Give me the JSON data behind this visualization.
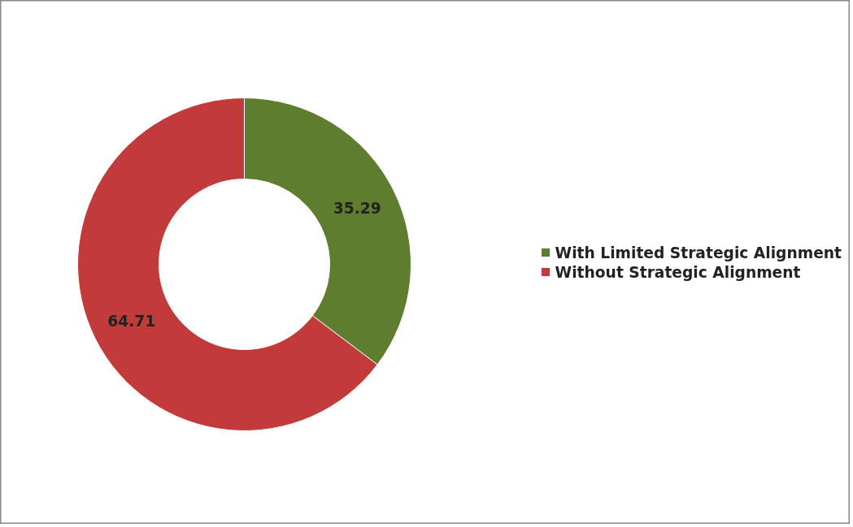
{
  "chart_data": {
    "type": "donut",
    "categories": [
      "With Limited Strategic Alignment",
      "Without Strategic Alignment"
    ],
    "values": [
      35.29,
      64.71
    ],
    "colors": [
      "#5e7d2f",
      "#c23a3a"
    ],
    "data_labels": true,
    "legend": "right"
  }
}
